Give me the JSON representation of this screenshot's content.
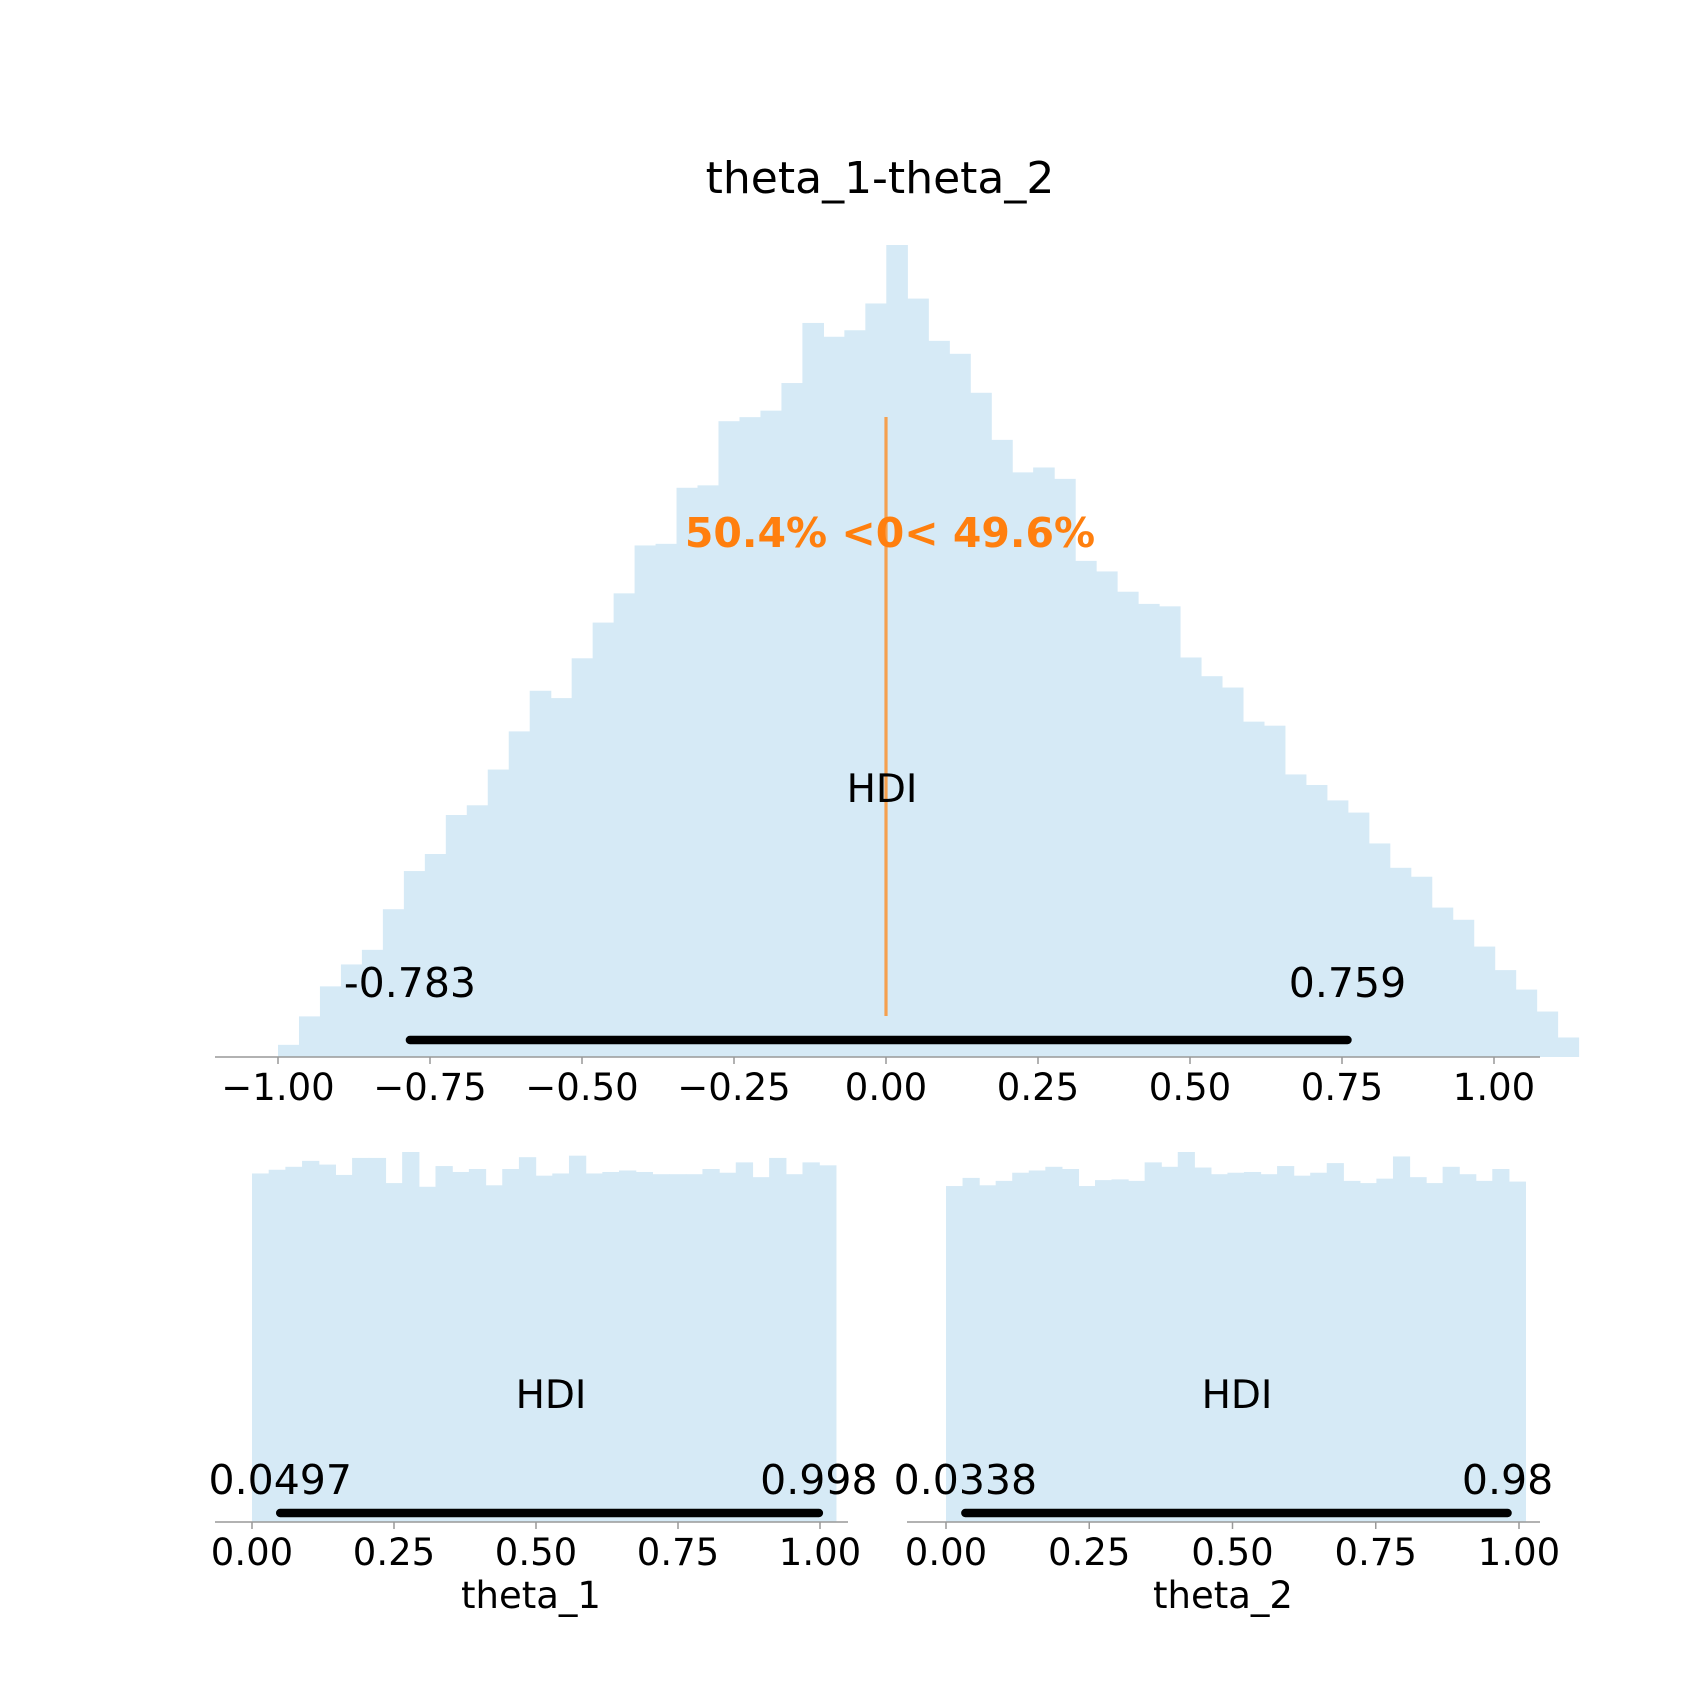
{
  "colors": {
    "histogram_fill": "#d6eaf6",
    "hdi_bar": "#000000",
    "reference_line": "#f5a04f",
    "reference_text": "#ff7f0e",
    "axis": "#999999"
  },
  "chart_data": [
    {
      "type": "histogram",
      "title": "theta_1-theta_2",
      "xlabel": "",
      "xlim": [
        -1.06,
        1.06
      ],
      "ylim": [
        0,
        1
      ],
      "bin_start": -1.0,
      "bin_width": 0.0345,
      "values": [
        0.015,
        0.05,
        0.087,
        0.114,
        0.132,
        0.182,
        0.229,
        0.25,
        0.298,
        0.31,
        0.354,
        0.401,
        0.451,
        0.442,
        0.491,
        0.535,
        0.571,
        0.63,
        0.632,
        0.701,
        0.704,
        0.783,
        0.788,
        0.796,
        0.83,
        0.904,
        0.887,
        0.895,
        0.928,
        1.0,
        0.934,
        0.882,
        0.866,
        0.818,
        0.76,
        0.72,
        0.726,
        0.712,
        0.611,
        0.598,
        0.573,
        0.558,
        0.555,
        0.492,
        0.469,
        0.455,
        0.413,
        0.408,
        0.348,
        0.335,
        0.316,
        0.301,
        0.263,
        0.233,
        0.222,
        0.184,
        0.169,
        0.136,
        0.107,
        0.083,
        0.056,
        0.024
      ],
      "xticks": [
        "−1.00",
        "−0.75",
        "−0.50",
        "−0.25",
        "0.00",
        "0.25",
        "0.50",
        "0.75",
        "1.00"
      ],
      "xtick_values": [
        -1.0,
        -0.75,
        -0.5,
        -0.25,
        0.0,
        0.25,
        0.5,
        0.75,
        1.0
      ],
      "hdi": {
        "label": "HDI",
        "low": -0.783,
        "high": 0.759,
        "low_text": "-0.783",
        "high_text": "0.759"
      },
      "ref_val": {
        "value": 0,
        "text": "50.4% <0< 49.6%"
      }
    },
    {
      "type": "histogram",
      "title": "",
      "xlabel": "theta_1",
      "xlim": [
        -0.06,
        1.05
      ],
      "ylim": [
        0,
        1
      ],
      "bin_start": 0.0,
      "bin_width": 0.02937,
      "values": [
        0.942,
        0.952,
        0.96,
        0.976,
        0.966,
        0.938,
        0.984,
        0.984,
        0.916,
        1.0,
        0.906,
        0.962,
        0.946,
        0.954,
        0.91,
        0.954,
        0.986,
        0.936,
        0.942,
        0.99,
        0.942,
        0.946,
        0.95,
        0.946,
        0.94,
        0.94,
        0.94,
        0.954,
        0.944,
        0.972,
        0.932,
        0.984,
        0.94,
        0.972,
        0.964
      ],
      "xticks": [
        "0.00",
        "0.25",
        "0.50",
        "0.75",
        "1.00"
      ],
      "xtick_values": [
        0.0,
        0.25,
        0.5,
        0.75,
        1.0
      ],
      "hdi": {
        "label": "HDI",
        "low": 0.0497,
        "high": 0.998,
        "low_text": "0.0497",
        "high_text": "0.998"
      }
    },
    {
      "type": "histogram",
      "title": "",
      "xlabel": "theta_2",
      "xlim": [
        -0.05,
        1.07
      ],
      "ylim": [
        0,
        1
      ],
      "bin_start": 0.0,
      "bin_width": 0.02889,
      "values": [
        0.908,
        0.93,
        0.91,
        0.922,
        0.944,
        0.95,
        0.96,
        0.954,
        0.908,
        0.924,
        0.926,
        0.922,
        0.972,
        0.96,
        1.0,
        0.958,
        0.94,
        0.944,
        0.946,
        0.94,
        0.962,
        0.936,
        0.944,
        0.97,
        0.922,
        0.916,
        0.928,
        0.988,
        0.932,
        0.916,
        0.96,
        0.94,
        0.922,
        0.954,
        0.92
      ],
      "xticks": [
        "0.00",
        "0.25",
        "0.50",
        "0.75",
        "1.00"
      ],
      "xtick_values": [
        0.0,
        0.25,
        0.5,
        0.75,
        1.0
      ],
      "hdi": {
        "label": "HDI",
        "low": 0.0338,
        "high": 0.98,
        "low_text": "0.0338",
        "high_text": "0.98"
      }
    }
  ]
}
